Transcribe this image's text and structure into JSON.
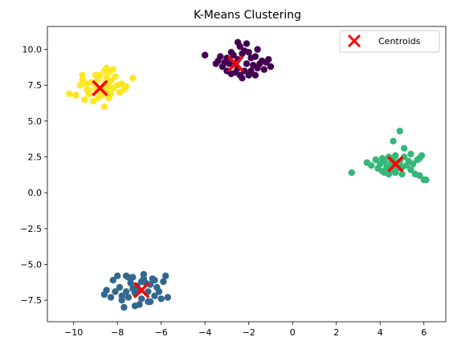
{
  "chart_data": {
    "type": "scatter",
    "title": "K-Means Clustering",
    "xlabel": "",
    "ylabel": "",
    "xlim": [
      -11.2,
      7.0
    ],
    "ylim": [
      -9.0,
      11.6
    ],
    "xticks": [
      -10,
      -8,
      -6,
      -4,
      -2,
      0,
      2,
      4,
      6
    ],
    "yticks": [
      -7.5,
      -5.0,
      -2.5,
      0.0,
      2.5,
      5.0,
      7.5,
      10.0
    ],
    "xtick_labels": [
      "−10",
      "−8",
      "−6",
      "−4",
      "−2",
      "0",
      "2",
      "4",
      "6"
    ],
    "ytick_labels": [
      "−7.5",
      "−5.0",
      "−2.5",
      "0.0",
      "2.5",
      "5.0",
      "7.5",
      "10.0"
    ],
    "grid": false,
    "legend": {
      "position": "upper right",
      "entries": [
        "Centroids"
      ]
    },
    "clusters": [
      {
        "color": "#440154",
        "points": [
          [
            -4.0,
            9.6
          ],
          [
            -3.4,
            9.2
          ],
          [
            -3.2,
            8.8
          ],
          [
            -3.0,
            9.4
          ],
          [
            -3.0,
            8.5
          ],
          [
            -2.8,
            8.3
          ],
          [
            -2.7,
            9.6
          ],
          [
            -2.6,
            9.0
          ],
          [
            -2.5,
            8.7
          ],
          [
            -2.5,
            9.3
          ],
          [
            -2.4,
            10.2
          ],
          [
            -2.3,
            9.7
          ],
          [
            -2.2,
            8.5
          ],
          [
            -2.1,
            9.0
          ],
          [
            -2.0,
            8.2
          ],
          [
            -1.9,
            9.4
          ],
          [
            -1.8,
            8.9
          ],
          [
            -1.7,
            9.5
          ],
          [
            -1.6,
            8.7
          ],
          [
            -1.5,
            9.0
          ],
          [
            -1.4,
            9.2
          ],
          [
            -1.3,
            8.6
          ],
          [
            -1.2,
            9.1
          ],
          [
            -1.1,
            9.3
          ],
          [
            -2.9,
            9.0
          ],
          [
            -3.1,
            9.1
          ],
          [
            -2.6,
            8.4
          ],
          [
            -2.4,
            8.2
          ],
          [
            -2.2,
            9.9
          ],
          [
            -2.0,
            9.8
          ],
          [
            -1.9,
            8.5
          ],
          [
            -3.3,
            9.5
          ],
          [
            -2.8,
            9.8
          ],
          [
            -2.3,
            8.0
          ],
          [
            -1.7,
            8.2
          ],
          [
            -2.5,
            10.5
          ],
          [
            -2.1,
            10.4
          ],
          [
            -1.6,
            10.0
          ],
          [
            -3.5,
            9.0
          ],
          [
            -1.0,
            8.8
          ]
        ]
      },
      {
        "color": "#31688e",
        "points": [
          [
            -8.6,
            -7.1
          ],
          [
            -8.5,
            -6.8
          ],
          [
            -8.3,
            -7.3
          ],
          [
            -8.2,
            -6.1
          ],
          [
            -8.0,
            -5.8
          ],
          [
            -7.9,
            -6.6
          ],
          [
            -7.8,
            -7.5
          ],
          [
            -7.7,
            -8.0
          ],
          [
            -7.6,
            -6.9
          ],
          [
            -7.5,
            -7.3
          ],
          [
            -7.4,
            -6.3
          ],
          [
            -7.3,
            -5.9
          ],
          [
            -7.2,
            -7.0
          ],
          [
            -7.1,
            -6.5
          ],
          [
            -7.0,
            -6.8
          ],
          [
            -6.9,
            -7.4
          ],
          [
            -6.8,
            -5.7
          ],
          [
            -6.7,
            -6.3
          ],
          [
            -6.6,
            -6.9
          ],
          [
            -6.5,
            -7.6
          ],
          [
            -6.4,
            -6.0
          ],
          [
            -6.3,
            -7.2
          ],
          [
            -6.2,
            -6.6
          ],
          [
            -6.1,
            -6.9
          ],
          [
            -6.0,
            -7.4
          ],
          [
            -5.9,
            -6.2
          ],
          [
            -5.8,
            -5.8
          ],
          [
            -5.7,
            -7.3
          ],
          [
            -7.5,
            -5.9
          ],
          [
            -7.0,
            -7.8
          ],
          [
            -6.8,
            -6.0
          ],
          [
            -6.5,
            -6.4
          ],
          [
            -7.8,
            -7.2
          ],
          [
            -7.3,
            -6.7
          ],
          [
            -6.6,
            -7.6
          ],
          [
            -8.1,
            -6.9
          ],
          [
            -7.6,
            -5.8
          ],
          [
            -6.3,
            -6.1
          ],
          [
            -6.9,
            -6.2
          ],
          [
            -7.2,
            -7.9
          ]
        ]
      },
      {
        "color": "#35b779",
        "points": [
          [
            2.7,
            1.4
          ],
          [
            3.6,
            1.9
          ],
          [
            3.8,
            2.3
          ],
          [
            3.9,
            1.7
          ],
          [
            4.0,
            2.0
          ],
          [
            4.1,
            2.4
          ],
          [
            4.1,
            1.5
          ],
          [
            4.2,
            2.2
          ],
          [
            4.3,
            1.8
          ],
          [
            4.4,
            2.5
          ],
          [
            4.4,
            1.3
          ],
          [
            4.5,
            2.1
          ],
          [
            4.5,
            1.6
          ],
          [
            4.6,
            2.3
          ],
          [
            4.6,
            1.9
          ],
          [
            4.7,
            2.6
          ],
          [
            4.7,
            1.4
          ],
          [
            4.8,
            2.0
          ],
          [
            4.8,
            1.7
          ],
          [
            4.9,
            4.3
          ],
          [
            4.9,
            2.2
          ],
          [
            5.0,
            1.8
          ],
          [
            5.1,
            2.5
          ],
          [
            5.1,
            3.1
          ],
          [
            5.2,
            1.9
          ],
          [
            5.3,
            2.2
          ],
          [
            5.4,
            1.6
          ],
          [
            5.5,
            2.0
          ],
          [
            5.6,
            1.3
          ],
          [
            5.7,
            2.3
          ],
          [
            5.8,
            1.2
          ],
          [
            5.9,
            2.6
          ],
          [
            6.0,
            0.9
          ],
          [
            6.1,
            0.9
          ],
          [
            4.6,
            3.6
          ],
          [
            5.4,
            2.7
          ],
          [
            5.0,
            1.3
          ],
          [
            4.2,
            1.4
          ],
          [
            3.4,
            2.1
          ],
          [
            5.8,
            2.4
          ]
        ]
      },
      {
        "color": "#fde725",
        "points": [
          [
            -10.2,
            6.9
          ],
          [
            -9.9,
            6.8
          ],
          [
            -9.7,
            7.5
          ],
          [
            -9.6,
            7.9
          ],
          [
            -9.5,
            6.5
          ],
          [
            -9.4,
            7.2
          ],
          [
            -9.3,
            6.9
          ],
          [
            -9.2,
            7.7
          ],
          [
            -9.1,
            6.4
          ],
          [
            -9.0,
            7.3
          ],
          [
            -8.9,
            7.9
          ],
          [
            -8.8,
            7.0
          ],
          [
            -8.8,
            8.2
          ],
          [
            -8.7,
            6.8
          ],
          [
            -8.6,
            7.6
          ],
          [
            -8.6,
            8.5
          ],
          [
            -8.5,
            7.1
          ],
          [
            -8.5,
            8.0
          ],
          [
            -8.4,
            7.4
          ],
          [
            -8.4,
            8.4
          ],
          [
            -8.3,
            6.9
          ],
          [
            -8.3,
            7.8
          ],
          [
            -8.2,
            7.3
          ],
          [
            -8.1,
            8.1
          ],
          [
            -8.0,
            7.5
          ],
          [
            -7.9,
            7.0
          ],
          [
            -7.8,
            7.6
          ],
          [
            -7.7,
            7.2
          ],
          [
            -7.6,
            7.4
          ],
          [
            -7.3,
            8.0
          ],
          [
            -9.6,
            8.2
          ],
          [
            -9.4,
            7.6
          ],
          [
            -8.9,
            6.6
          ],
          [
            -8.6,
            6.0
          ],
          [
            -9.0,
            8.2
          ],
          [
            -8.5,
            8.7
          ],
          [
            -8.2,
            8.6
          ],
          [
            -8.7,
            7.3
          ],
          [
            -9.3,
            7.1
          ],
          [
            -8.4,
            6.6
          ]
        ]
      }
    ],
    "centroids": [
      [
        -2.6,
        9.0
      ],
      [
        -6.9,
        -6.8
      ],
      [
        4.7,
        2.0
      ],
      [
        -8.8,
        7.3
      ]
    ],
    "centroid_color": "#ff0000"
  }
}
